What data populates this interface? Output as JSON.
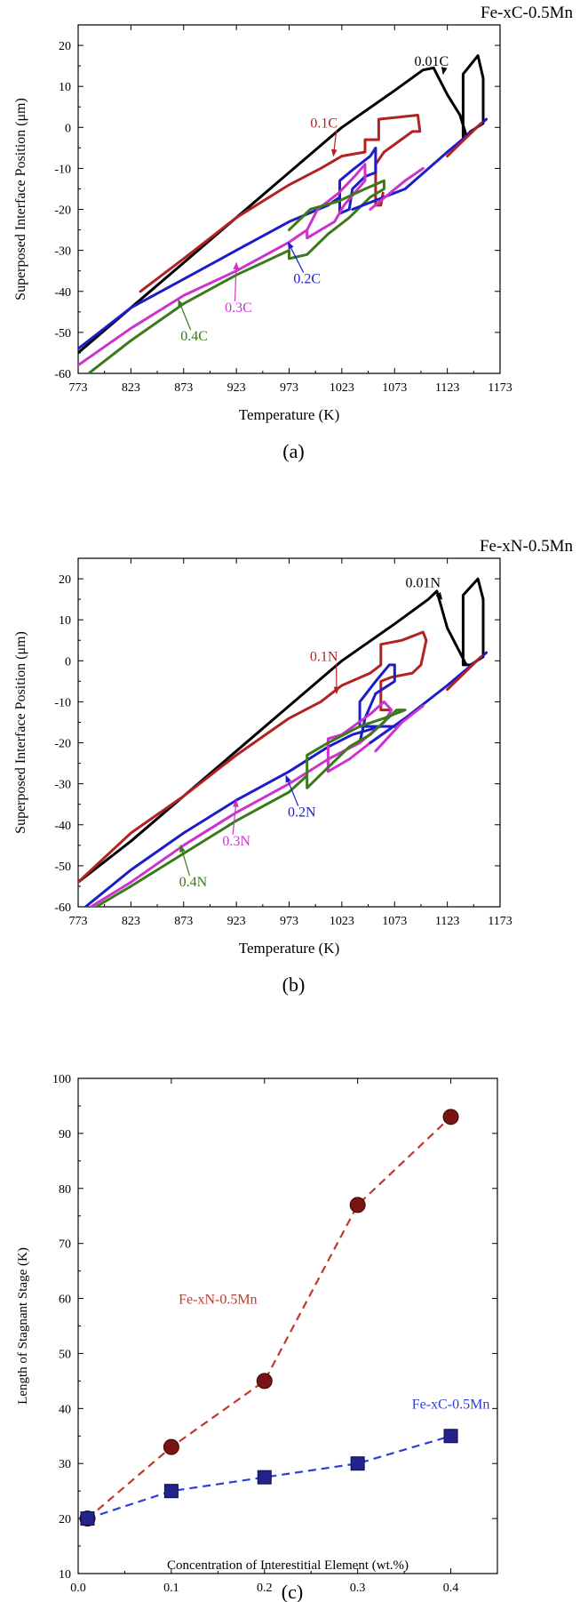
{
  "chart_data": [
    {
      "panel": "(a)",
      "type": "line",
      "title": "Fe-xC-0.5Mn",
      "xlabel": "Temperature (K)",
      "ylabel": "Superposed Interface Position (μm)",
      "xlim": [
        773,
        1173
      ],
      "ylim": [
        -60,
        25
      ],
      "xticks": [
        773,
        823,
        873,
        923,
        973,
        1023,
        1073,
        1123,
        1173
      ],
      "yticks": [
        -60,
        -50,
        -40,
        -30,
        -20,
        -10,
        0,
        10,
        20
      ],
      "series": [
        {
          "name": "0.01C",
          "color": "#000000",
          "label_at": [
            1108,
            15
          ],
          "arrow_to": [
            1119,
            13
          ],
          "points": [
            [
              773,
              -55
            ],
            [
              823,
              -44
            ],
            [
              873,
              -33
            ],
            [
              923,
              -22
            ],
            [
              973,
              -11
            ],
            [
              1023,
              0
            ],
            [
              1073,
              9
            ],
            [
              1100,
              14
            ],
            [
              1110,
              14.5
            ],
            [
              1123,
              8
            ],
            [
              1135,
              3
            ],
            [
              1141,
              -2
            ],
            [
              1141,
              -2
            ],
            [
              1141,
              -2
            ],
            [
              1138,
              -3
            ],
            [
              1138,
              13
            ],
            [
              1152,
              17.5
            ],
            [
              1157,
              12
            ],
            [
              1157,
              1
            ],
            [
              1145,
              -1
            ],
            [
              1138,
              -3
            ]
          ]
        },
        {
          "name": "0.1C",
          "color": "#b22222",
          "label_at": [
            1006,
            0
          ],
          "arrow_to": [
            1015,
            -7
          ],
          "points": [
            [
              832,
              -40
            ],
            [
              873,
              -32
            ],
            [
              923,
              -22
            ],
            [
              973,
              -14
            ],
            [
              1003,
              -10
            ],
            [
              1023,
              -7
            ],
            [
              1045,
              -6
            ],
            [
              1045,
              -3
            ],
            [
              1058,
              -3
            ],
            [
              1058,
              2
            ],
            [
              1095,
              3
            ],
            [
              1097,
              -1
            ],
            [
              1090,
              -1
            ],
            [
              1063,
              -6
            ],
            [
              1055,
              -9
            ],
            [
              1055,
              -19
            ],
            [
              1060,
              -19
            ],
            [
              1062,
              -16
            ]
          ]
        },
        {
          "name": "0.2C",
          "color": "#1c1cc8",
          "label_at": [
            990,
            -38
          ],
          "arrow_to": [
            972,
            -28
          ],
          "points": [
            [
              773,
              -54
            ],
            [
              823,
              -44
            ],
            [
              873,
              -37
            ],
            [
              923,
              -30
            ],
            [
              973,
              -23
            ],
            [
              1010,
              -19
            ],
            [
              1021,
              -17
            ],
            [
              1021,
              -13
            ],
            [
              1035,
              -10
            ],
            [
              1050,
              -7
            ],
            [
              1055,
              -5
            ],
            [
              1055,
              -11
            ],
            [
              1045,
              -12
            ],
            [
              1033,
              -15
            ],
            [
              1030,
              -20
            ],
            [
              1021,
              -21
            ],
            [
              1021,
              -17
            ]
          ]
        },
        {
          "name": "0.3C",
          "color": "#cc33cc",
          "label_at": [
            925,
            -45
          ],
          "arrow_to": [
            923,
            -33
          ],
          "points": [
            [
              773,
              -58
            ],
            [
              823,
              -49
            ],
            [
              873,
              -41
            ],
            [
              923,
              -35
            ],
            [
              973,
              -28
            ],
            [
              990,
              -25
            ],
            [
              990,
              -27
            ],
            [
              1003,
              -25
            ],
            [
              1016,
              -23
            ],
            [
              1025,
              -19
            ],
            [
              1035,
              -16
            ],
            [
              1045,
              -13
            ],
            [
              1045,
              -9
            ],
            [
              1035,
              -12
            ],
            [
              1020,
              -16
            ],
            [
              1000,
              -20
            ],
            [
              990,
              -25
            ]
          ]
        },
        {
          "name": "0.4C",
          "color": "#3a7a1a",
          "label_at": [
            883,
            -52
          ],
          "arrow_to": [
            868,
            -42
          ],
          "points": [
            [
              773,
              -62
            ],
            [
              823,
              -52
            ],
            [
              873,
              -43
            ],
            [
              923,
              -36
            ],
            [
              973,
              -30
            ],
            [
              973,
              -32
            ],
            [
              990,
              -31
            ],
            [
              1010,
              -26
            ],
            [
              1030,
              -22
            ],
            [
              1050,
              -17
            ],
            [
              1063,
              -15
            ],
            [
              1063,
              -13
            ],
            [
              1045,
              -15
            ],
            [
              1020,
              -18
            ],
            [
              993,
              -20
            ],
            [
              973,
              -25
            ]
          ]
        },
        {
          "name": "",
          "color": "#1c1cc8",
          "points": [
            [
              1033,
              -20
            ],
            [
              1083,
              -15
            ],
            [
              1123,
              -6
            ],
            [
              1160,
              2
            ]
          ]
        },
        {
          "name": "",
          "color": "#cc33cc",
          "points": [
            [
              1050,
              -20
            ],
            [
              1083,
              -13
            ],
            [
              1100,
              -10
            ]
          ]
        },
        {
          "name": "",
          "color": "#b22222",
          "points": [
            [
              1123,
              -7
            ],
            [
              1155,
              1
            ]
          ]
        }
      ]
    },
    {
      "panel": "(b)",
      "type": "line",
      "title": "Fe-xN-0.5Mn",
      "xlabel": "Temperature (K)",
      "ylabel": "Superposed Interface Position (μm)",
      "xlim": [
        773,
        1173
      ],
      "ylim": [
        -60,
        25
      ],
      "xticks": [
        773,
        823,
        873,
        923,
        973,
        1023,
        1073,
        1123,
        1173
      ],
      "yticks": [
        -60,
        -50,
        -40,
        -30,
        -20,
        -10,
        0,
        10,
        20
      ],
      "series": [
        {
          "name": "0.01N",
          "color": "#000000",
          "label_at": [
            1100,
            18
          ],
          "arrow_to": [
            1118,
            15
          ],
          "points": [
            [
              773,
              -54
            ],
            [
              823,
              -44
            ],
            [
              873,
              -33
            ],
            [
              923,
              -22
            ],
            [
              973,
              -11
            ],
            [
              1023,
              0
            ],
            [
              1073,
              9
            ],
            [
              1105,
              15
            ],
            [
              1113,
              17
            ],
            [
              1123,
              8
            ],
            [
              1135,
              2
            ],
            [
              1141,
              -1
            ],
            [
              1141,
              -1
            ],
            [
              1138,
              -1
            ],
            [
              1138,
              16
            ],
            [
              1152,
              20
            ],
            [
              1157,
              15
            ],
            [
              1157,
              1
            ],
            [
              1145,
              -1
            ],
            [
              1141,
              -1
            ]
          ]
        },
        {
          "name": "0.1N",
          "color": "#b22222",
          "label_at": [
            1006,
            0
          ],
          "arrow_to": [
            1018,
            -8
          ],
          "points": [
            [
              773,
              -54
            ],
            [
              823,
              -42
            ],
            [
              873,
              -33
            ],
            [
              923,
              -23
            ],
            [
              973,
              -14
            ],
            [
              1003,
              -10
            ],
            [
              1023,
              -6
            ],
            [
              1050,
              -3
            ],
            [
              1060,
              -1
            ],
            [
              1060,
              4
            ],
            [
              1080,
              5
            ],
            [
              1100,
              7
            ],
            [
              1103,
              5
            ],
            [
              1098,
              -1
            ],
            [
              1090,
              -3
            ],
            [
              1070,
              -4
            ],
            [
              1060,
              -5
            ],
            [
              1060,
              -12
            ],
            [
              1068,
              -12
            ]
          ]
        },
        {
          "name": "0.2N",
          "color": "#1c1cc8",
          "label_at": [
            985,
            -38
          ],
          "arrow_to": [
            970,
            -28
          ],
          "points": [
            [
              780,
              -60
            ],
            [
              823,
              -51
            ],
            [
              873,
              -42
            ],
            [
              923,
              -34
            ],
            [
              973,
              -27
            ],
            [
              1010,
              -21
            ],
            [
              1033,
              -18
            ],
            [
              1060,
              -16
            ],
            [
              1073,
              -16
            ],
            [
              1040,
              -16
            ],
            [
              1040,
              -10
            ],
            [
              1055,
              -5
            ],
            [
              1068,
              -1
            ],
            [
              1073,
              -1
            ],
            [
              1073,
              -5
            ],
            [
              1055,
              -8
            ],
            [
              1045,
              -14
            ],
            [
              1040,
              -20
            ]
          ]
        },
        {
          "name": "0.3N",
          "color": "#cc33cc",
          "label_at": [
            923,
            -45
          ],
          "arrow_to": [
            923,
            -34
          ],
          "points": [
            [
              785,
              -60
            ],
            [
              823,
              -54
            ],
            [
              873,
              -45
            ],
            [
              923,
              -37
            ],
            [
              973,
              -30
            ],
            [
              1010,
              -24
            ],
            [
              1040,
              -20
            ],
            [
              1063,
              -15
            ],
            [
              1070,
              -12
            ],
            [
              1063,
              -10
            ],
            [
              1050,
              -13
            ],
            [
              1023,
              -18
            ],
            [
              1010,
              -19
            ],
            [
              1010,
              -27
            ],
            [
              1030,
              -24
            ],
            [
              1050,
              -20
            ]
          ]
        },
        {
          "name": "0.4N",
          "color": "#3a7a1a",
          "label_at": [
            882,
            -55
          ],
          "arrow_to": [
            870,
            -45
          ],
          "points": [
            [
              790,
              -60
            ],
            [
              823,
              -55
            ],
            [
              873,
              -47
            ],
            [
              923,
              -39
            ],
            [
              973,
              -32
            ],
            [
              990,
              -28
            ],
            [
              990,
              -31
            ],
            [
              1010,
              -26
            ],
            [
              1030,
              -21
            ],
            [
              1050,
              -18
            ],
            [
              1075,
              -12
            ],
            [
              1083,
              -12
            ],
            [
              1063,
              -14
            ],
            [
              1040,
              -16
            ],
            [
              1010,
              -20
            ],
            [
              990,
              -23
            ],
            [
              990,
              -28
            ]
          ]
        },
        {
          "name": "",
          "color": "#1c1cc8",
          "points": [
            [
              1050,
              -20
            ],
            [
              1083,
              -14
            ],
            [
              1123,
              -6
            ],
            [
              1160,
              2
            ]
          ]
        },
        {
          "name": "",
          "color": "#cc33cc",
          "points": [
            [
              1055,
              -22
            ],
            [
              1080,
              -15
            ],
            [
              1100,
              -11
            ]
          ]
        },
        {
          "name": "",
          "color": "#b22222",
          "points": [
            [
              1123,
              -7
            ],
            [
              1155,
              1
            ]
          ]
        }
      ]
    },
    {
      "panel": "(c)",
      "type": "scatter",
      "xlabel": "Concentration of Interestitial Element (wt.%)",
      "ylabel": "Length of Stagnant Stage (K)",
      "xlim": [
        0.0,
        0.45
      ],
      "ylim": [
        10,
        100
      ],
      "xticks": [
        0.0,
        0.1,
        0.2,
        0.3,
        0.4
      ],
      "xtick_labels": [
        "0.0",
        "0.1",
        "0.2",
        "0.3",
        "0.4"
      ],
      "yticks": [
        10,
        20,
        30,
        40,
        50,
        60,
        70,
        80,
        90,
        100
      ],
      "series": [
        {
          "name": "Fe-xN-0.5Mn",
          "color": "#7a1414",
          "line_color": "#c0392b",
          "marker": "circle",
          "label_at": [
            0.15,
            59
          ],
          "x": [
            0.01,
            0.1,
            0.2,
            0.3,
            0.4
          ],
          "values": [
            20,
            33,
            45,
            77,
            93
          ]
        },
        {
          "name": "Fe-xC-0.5Mn",
          "color": "#23238c",
          "line_color": "#2c3edc",
          "marker": "square",
          "label_at": [
            0.4,
            40
          ],
          "x": [
            0.01,
            0.1,
            0.2,
            0.3,
            0.4
          ],
          "values": [
            20,
            25,
            27.5,
            30,
            35
          ]
        }
      ]
    }
  ]
}
